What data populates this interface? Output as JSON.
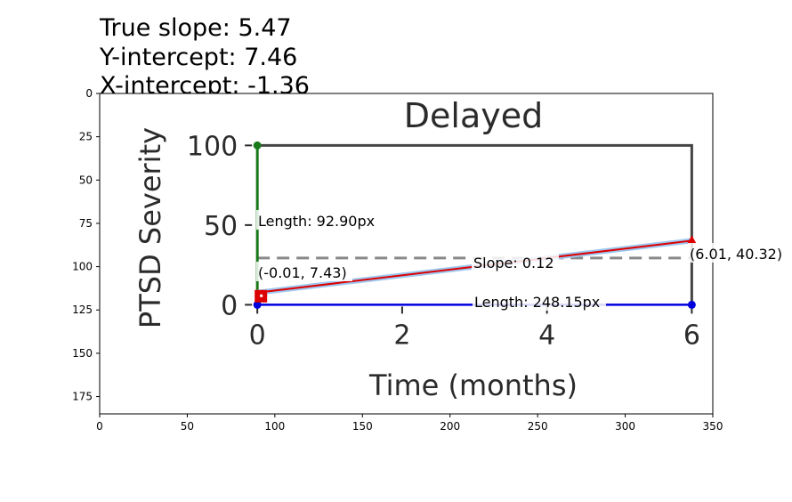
{
  "header": {
    "line1": "True slope: 5.47",
    "line2": "Y-intercept: 7.46",
    "line3": "X-intercept: -1.36"
  },
  "annotations": {
    "vertical_length": "Length: 92.90px",
    "start_point": "(-0.01, 7.43)",
    "end_point": "(6.01, 40.32)",
    "slope": "Slope: 0.12",
    "horizontal_length": "Length: 248.15px"
  },
  "chart_data": {
    "type": "line",
    "outer_axes": {
      "xlim": [
        0,
        350
      ],
      "ylim": [
        185,
        0
      ],
      "x_ticks": [
        0,
        50,
        100,
        150,
        200,
        250,
        300,
        350
      ],
      "y_ticks": [
        0,
        25,
        50,
        75,
        100,
        125,
        150,
        175
      ]
    },
    "embedded_plot": {
      "title": "Delayed",
      "xlabel": "Time (months)",
      "ylabel": "PTSD Severity",
      "x_tick_labels": [
        "0",
        "2",
        "4",
        "6"
      ],
      "y_tick_labels": [
        "0",
        "50",
        "100"
      ]
    },
    "overlays": {
      "vertical_segment": {
        "x": 90,
        "y_from": 30,
        "y_to": 123,
        "color": "#1a7a1a"
      },
      "horizontal_segment": {
        "y": 122,
        "x_from": 90,
        "x_to": 338,
        "color": "#0000dd"
      },
      "fit_line": {
        "from": [
          90,
          115
        ],
        "to": [
          338,
          85
        ],
        "color": "#dd0000"
      },
      "dashed_reference_y": 95,
      "outline_box": {
        "x": [
          90,
          338
        ],
        "y": [
          30,
          122
        ]
      },
      "markers": [
        {
          "x": 90,
          "y": 30,
          "color": "#1a7a1a",
          "shape": "circle"
        },
        {
          "x": 90,
          "y": 122,
          "color": "#0000dd",
          "shape": "circle"
        },
        {
          "x": 338,
          "y": 122,
          "color": "#0000dd",
          "shape": "circle"
        },
        {
          "x": 90,
          "y": 115,
          "color": "#dd0000",
          "shape": "square"
        },
        {
          "x": 338,
          "y": 85,
          "color": "#dd0000",
          "shape": "triangle"
        }
      ]
    }
  }
}
